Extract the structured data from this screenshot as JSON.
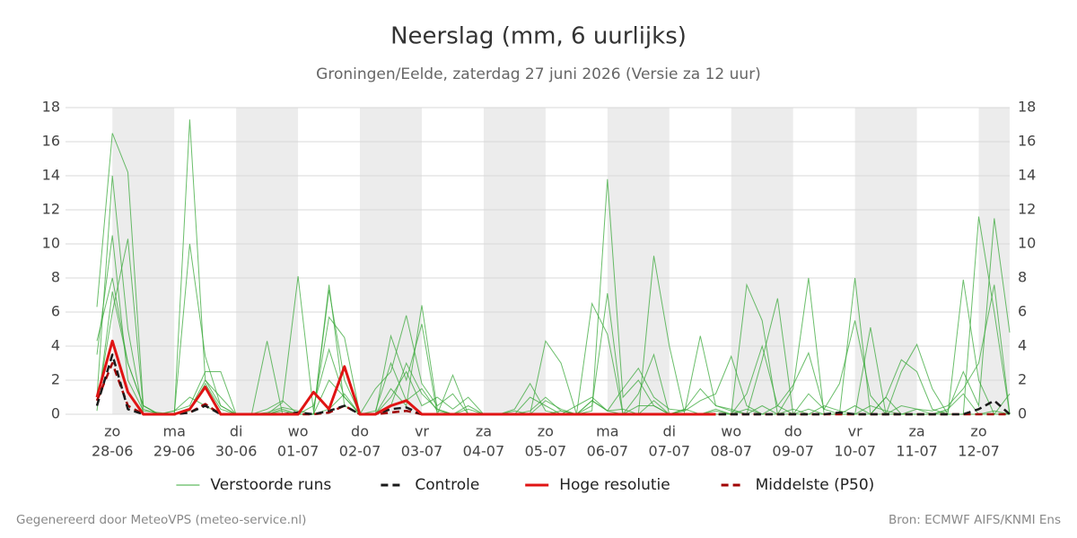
{
  "chart_data": {
    "type": "line",
    "title": "Neerslag (mm, 6 uurlijks)",
    "subtitle": "Groningen/Eelde, zaterdag 27 juni 2026 (Versie za 12 uur)",
    "footer_left": "Gegenereerd door MeteoVPS (meteo-service.nl)",
    "footer_right": "Bron: ECMWF AIFS/KNMI Ens",
    "categories": [
      null,
      "zo",
      null,
      null,
      null,
      "ma",
      null,
      null,
      null,
      "di",
      null,
      null,
      null,
      "wo",
      null,
      null,
      null,
      "do",
      null,
      null,
      null,
      "vr",
      null,
      null,
      null,
      "za",
      null,
      null,
      null,
      "zo",
      null,
      null,
      null,
      "ma",
      null,
      null,
      null,
      "di",
      null,
      null,
      null,
      "wo",
      null,
      null,
      null,
      "do",
      null,
      null,
      null,
      "vr",
      null,
      null,
      null,
      "za",
      null,
      null,
      null,
      "zo",
      null,
      null
    ],
    "category_dates": [
      null,
      "28-06",
      null,
      null,
      null,
      "29-06",
      null,
      null,
      null,
      "30-06",
      null,
      null,
      null,
      "01-07",
      null,
      null,
      null,
      "02-07",
      null,
      null,
      null,
      "03-07",
      null,
      null,
      null,
      "04-07",
      null,
      null,
      null,
      "05-07",
      null,
      null,
      null,
      "06-07",
      null,
      null,
      null,
      "07-07",
      null,
      null,
      null,
      "08-07",
      null,
      null,
      null,
      "09-07",
      null,
      null,
      null,
      "10-07",
      null,
      null,
      null,
      "11-07",
      null,
      null,
      null,
      "12-07",
      null,
      null
    ],
    "ylim": [
      0,
      18
    ],
    "yticks": [
      0,
      2,
      4,
      6,
      8,
      10,
      12,
      14,
      16,
      18
    ],
    "grid": true,
    "right_axis_mirror": true,
    "series": [
      {
        "name": "Verstoorde runs",
        "color": "#3aa83a",
        "runs": [
          [
            6.3,
            16.5,
            14.2,
            0.5,
            0,
            0,
            0.2,
            1.8,
            0.3,
            0,
            0,
            0.1,
            0.4,
            0.2,
            0,
            0.3,
            1.2,
            0,
            0,
            0.5,
            3.0,
            1.2,
            0.3,
            0,
            0,
            0,
            0,
            0.2,
            0,
            0.8,
            0.3,
            0,
            0.2,
            13.8,
            1.0,
            2.0,
            0.5,
            0,
            0,
            0,
            0.2,
            0,
            0.3,
            0,
            0.5,
            0,
            1.2,
            0.3,
            0,
            0.5,
            0,
            1.0,
            0,
            0,
            0,
            0.3,
            1.2,
            0,
            0.2,
            0
          ],
          [
            3.5,
            10.5,
            2.0,
            0.2,
            0.1,
            0,
            17.3,
            2.0,
            0.5,
            0,
            0,
            4.3,
            0,
            0,
            0,
            7.6,
            0.5,
            0,
            0,
            1.5,
            0.5,
            6.4,
            0.3,
            0,
            0.5,
            0,
            0,
            0,
            0,
            0,
            0.2,
            0,
            6.5,
            4.7,
            0,
            0,
            9.3,
            4.0,
            0,
            0,
            0,
            0,
            7.6,
            5.5,
            0,
            0,
            0.3,
            0,
            0,
            0,
            0,
            0,
            0,
            0,
            0,
            0,
            0,
            0,
            0,
            0
          ],
          [
            0.5,
            6.0,
            10.3,
            0.3,
            0,
            0,
            10.0,
            3.4,
            0.5,
            0,
            0,
            0,
            0.7,
            8.1,
            0.2,
            5.7,
            4.5,
            0,
            0,
            4.6,
            2.0,
            5.3,
            0,
            2.3,
            0,
            0,
            0,
            0,
            0,
            4.3,
            3.0,
            0,
            0.5,
            7.1,
            0,
            1.2,
            3.5,
            0,
            0.2,
            4.6,
            0.5,
            0.3,
            0,
            3.2,
            6.8,
            0,
            0,
            0,
            0,
            0,
            5.1,
            0,
            2.5,
            4.1,
            1.5,
            0,
            7.9,
            2.0,
            0,
            1.2
          ],
          [
            4.3,
            8.0,
            3.0,
            0.5,
            0,
            0.2,
            0.5,
            2.5,
            2.5,
            0,
            0,
            0,
            0.3,
            0,
            0,
            7.3,
            2.0,
            0,
            1.5,
            2.5,
            5.8,
            1.8,
            0.5,
            1.2,
            0,
            0,
            0,
            0.3,
            1.8,
            0.2,
            0,
            0.5,
            1.0,
            0.2,
            1.5,
            2.7,
            1.0,
            0.3,
            0.2,
            0.8,
            1.2,
            3.4,
            0.5,
            0,
            0,
            1.5,
            8.0,
            0,
            0,
            8.0,
            0,
            1.0,
            3.2,
            2.5,
            0.3,
            0,
            0,
            11.6,
            6.0,
            0
          ],
          [
            1.0,
            14.0,
            5.0,
            0,
            0,
            0,
            0.3,
            2.0,
            1.0,
            0,
            0,
            0.3,
            0.8,
            0,
            0.5,
            3.8,
            1.0,
            0,
            0.2,
            3.0,
            0.8,
            1.5,
            0.2,
            0,
            0.3,
            0,
            0,
            0,
            0.2,
            1.0,
            0.2,
            0,
            0.8,
            0.2,
            0.3,
            0,
            0.8,
            0,
            0.3,
            0,
            0.3,
            0,
            1.2,
            4.0,
            0.5,
            1.7,
            3.6,
            0.3,
            1.8,
            5.5,
            1.1,
            0,
            0.5,
            0.3,
            0,
            0.2,
            2.5,
            0.5,
            11.5,
            4.8
          ],
          [
            0.2,
            7.2,
            3.0,
            0.5,
            0,
            0.2,
            1.0,
            0.5,
            0,
            0,
            0,
            0,
            0.2,
            0,
            0,
            2.0,
            1.0,
            0,
            0,
            1.0,
            2.5,
            0.5,
            1.0,
            0.3,
            1.0,
            0,
            0,
            0,
            1.0,
            0.5,
            0,
            0,
            0.8,
            0.2,
            0,
            0.5,
            0.5,
            0,
            0.3,
            1.5,
            0.5,
            0.2,
            0,
            0.5,
            0,
            0.3,
            0,
            0.5,
            0.2,
            0,
            0.5,
            0.2,
            0,
            0.3,
            0.2,
            0.5,
            1.5,
            3.0,
            7.6,
            0
          ]
        ]
      },
      {
        "name": "Controle",
        "color": "#1a1a1a",
        "dashed": true,
        "values": [
          0.5,
          3.5,
          0.3,
          0,
          0,
          0,
          0.1,
          0.5,
          0,
          0,
          0,
          0,
          0,
          0.1,
          0,
          0.2,
          0.5,
          0,
          0,
          0.3,
          0.4,
          0,
          0,
          0,
          0,
          0,
          0,
          0,
          0,
          0,
          0,
          0,
          0,
          0,
          0,
          0,
          0,
          0,
          0,
          0,
          0,
          0,
          0,
          0,
          0,
          0,
          0,
          0,
          0.1,
          0,
          0,
          0,
          0,
          0,
          0,
          0,
          0,
          0.3,
          0.8,
          0
        ]
      },
      {
        "name": "Hoge resolutie",
        "color": "#e01414",
        "values": [
          1.0,
          4.3,
          1.3,
          0,
          0,
          0,
          0.3,
          1.6,
          0,
          0,
          0,
          0,
          0,
          0,
          1.3,
          0.3,
          2.8,
          0,
          0,
          0.5,
          0.8,
          0,
          0,
          0,
          0,
          0,
          0,
          0,
          0,
          0,
          0,
          0,
          0,
          0,
          0,
          0,
          0,
          0,
          0,
          0,
          0,
          null,
          null,
          null,
          null,
          null,
          null,
          null,
          null,
          null,
          null,
          null,
          null,
          null,
          null,
          null,
          null,
          null,
          null,
          null
        ]
      },
      {
        "name": "Middelste (P50)",
        "color": "#a00000",
        "dashed": true,
        "values": [
          0.8,
          3.0,
          0.5,
          0,
          0,
          0,
          0.1,
          0.6,
          0,
          0,
          0,
          0,
          0,
          0,
          0,
          0.1,
          0.5,
          0,
          0,
          0.1,
          0.2,
          0,
          0,
          0,
          0,
          0,
          0,
          0,
          0,
          0,
          0,
          0,
          0,
          0,
          0,
          0,
          0,
          0,
          0,
          0,
          0,
          0,
          0,
          0,
          0,
          0,
          0,
          0,
          0,
          0,
          0,
          0,
          0,
          0,
          0,
          0,
          0,
          0,
          0,
          0
        ]
      }
    ]
  }
}
